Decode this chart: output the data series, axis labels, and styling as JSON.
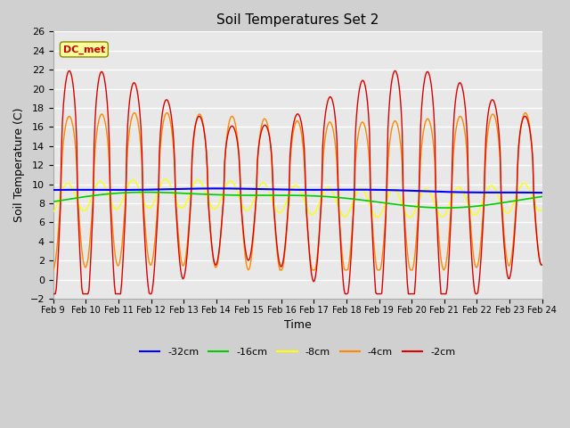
{
  "title": "Soil Temperatures Set 2",
  "xlabel": "Time",
  "ylabel": "Soil Temperature (C)",
  "ylim": [
    -2,
    26
  ],
  "yticks": [
    -2,
    0,
    2,
    4,
    6,
    8,
    10,
    12,
    14,
    16,
    18,
    20,
    22,
    24,
    26
  ],
  "x_labels": [
    "Feb 9",
    "Feb 10",
    "Feb 11",
    "Feb 12",
    "Feb 13",
    "Feb 14",
    "Feb 15",
    "Feb 16",
    "Feb 17",
    "Feb 18",
    "Feb 19",
    "Feb 20",
    "Feb 21",
    "Feb 22",
    "Feb 23",
    "Feb 24"
  ],
  "legend_labels": [
    "-32cm",
    "-16cm",
    "-8cm",
    "-4cm",
    "-2cm"
  ],
  "legend_colors": [
    "#0000ff",
    "#00cc00",
    "#ffff00",
    "#ff8800",
    "#dd0000"
  ],
  "annotation_text": "DC_met",
  "annotation_color": "#cc0000",
  "annotation_bg": "#ffff99",
  "plot_bg": "#e8e8e8",
  "n_points": 480,
  "pts_per_day": 32
}
